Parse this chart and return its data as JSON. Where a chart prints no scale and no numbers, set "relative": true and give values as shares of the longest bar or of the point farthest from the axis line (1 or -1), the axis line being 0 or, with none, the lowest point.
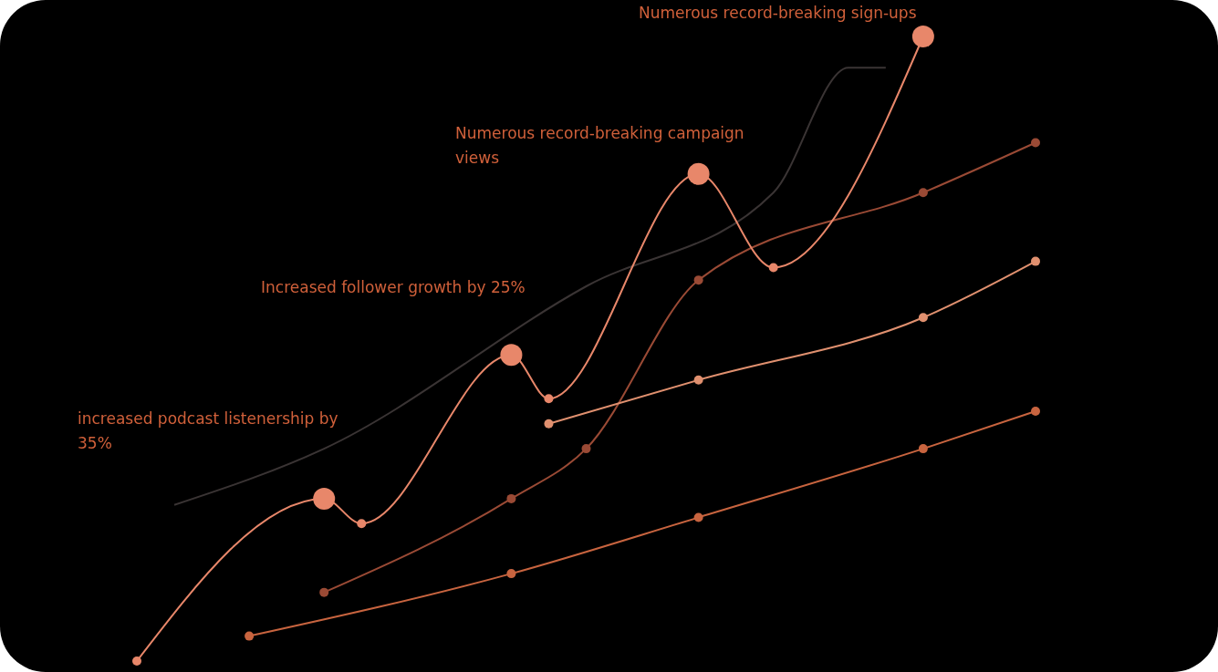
{
  "chart_data": {
    "type": "line",
    "relative": true,
    "marker": "circle",
    "categories": [
      null,
      null,
      null,
      null,
      null,
      null,
      null,
      null,
      null,
      null,
      null,
      null,
      null,
      null,
      null,
      null,
      null,
      null,
      null,
      null,
      null,
      null,
      null,
      null,
      null
    ],
    "series": [
      {
        "color": "#3a3434",
        "marker": "none",
        "values": [
          null,
          0.25,
          null,
          null,
          null,
          0.34,
          null,
          null,
          null,
          null,
          null,
          null,
          0.6,
          null,
          null,
          null,
          null,
          0.75,
          null,
          0.95,
          0.95,
          null,
          null,
          null,
          null
        ]
      },
      {
        "color": "#9a4a35",
        "values": [
          null,
          null,
          null,
          null,
          null,
          0.11,
          null,
          null,
          null,
          null,
          0.26,
          null,
          0.34,
          null,
          null,
          0.61,
          null,
          null,
          null,
          null,
          null,
          0.75,
          null,
          null,
          0.83
        ]
      },
      {
        "color": "#e0906f",
        "values": [
          null,
          null,
          null,
          null,
          null,
          null,
          null,
          null,
          null,
          null,
          null,
          0.38,
          null,
          null,
          null,
          0.45,
          null,
          null,
          null,
          null,
          null,
          0.55,
          null,
          null,
          0.64
        ]
      },
      {
        "color": "#c8643f",
        "values": [
          null,
          null,
          null,
          0.04,
          null,
          null,
          null,
          null,
          null,
          null,
          0.14,
          null,
          null,
          null,
          null,
          0.23,
          null,
          null,
          null,
          null,
          null,
          0.34,
          null,
          null,
          0.4
        ]
      },
      {
        "color": "#e8876a",
        "values": [
          0,
          null,
          null,
          null,
          null,
          0.26,
          0.22,
          null,
          null,
          null,
          0.49,
          0.42,
          null,
          null,
          null,
          0.78,
          null,
          0.63,
          null,
          null,
          null,
          1,
          null,
          null,
          null
        ]
      }
    ],
    "annotations": [
      "increased podcast listenership by 35%",
      "Increased follower growth by 25%",
      "Numerous record-breaking campaign views",
      "Numerous record-breaking sign-ups"
    ]
  }
}
